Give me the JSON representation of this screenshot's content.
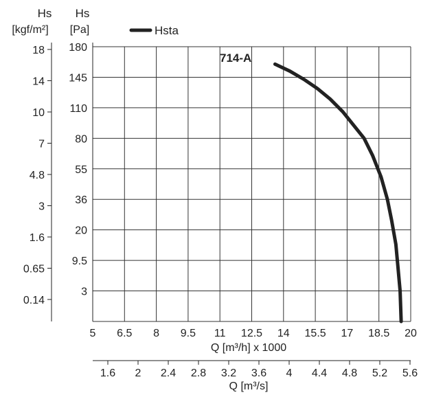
{
  "chart_data": {
    "type": "line",
    "title": "714-A",
    "legend": [
      "Hsta"
    ],
    "legend_position": "top-left",
    "grid": true,
    "x_axis": {
      "label": "Q [m³/h] x 1000",
      "ticks": [
        "5",
        "6.5",
        "8",
        "9.5",
        "11",
        "12.5",
        "14",
        "15.5",
        "17",
        "18.5",
        "20"
      ],
      "range": [
        5,
        20
      ]
    },
    "x2_axis": {
      "label": "Q [m³/s]",
      "ticks": [
        "1.6",
        "2",
        "2.4",
        "2.8",
        "3.2",
        "3.6",
        "4",
        "4.4",
        "4.8",
        "5.2",
        "5.6"
      ]
    },
    "y_axis": {
      "label_line1": "Hs",
      "label_line2": "[Pa]",
      "ticks": [
        "180",
        "145",
        "110",
        "80",
        "55",
        "36",
        "20",
        "9.5",
        "3"
      ]
    },
    "y2_axis": {
      "label_line1": "Hs",
      "label_line2": "[kgf/m²]",
      "ticks": [
        "18",
        "14",
        "10",
        "7",
        "4.8",
        "3",
        "1.6",
        "0.65",
        "0.14"
      ]
    },
    "series": [
      {
        "name": "Hsta",
        "color": "#222222",
        "x": [
          13.6,
          14.3,
          15.0,
          15.6,
          16.2,
          16.8,
          17.3,
          17.8,
          18.2,
          18.6,
          18.9,
          19.1,
          19.3,
          19.4,
          19.5,
          19.55
        ],
        "y": [
          160,
          152,
          142,
          132,
          120,
          106,
          93,
          80,
          66,
          50,
          36,
          25,
          15,
          8,
          3,
          0
        ]
      }
    ]
  }
}
